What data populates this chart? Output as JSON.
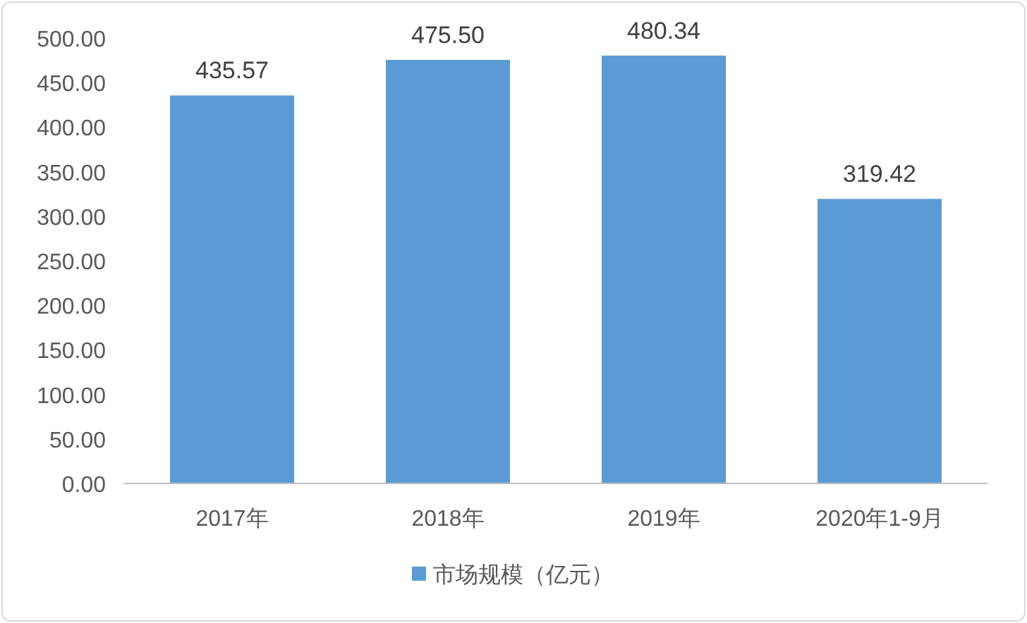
{
  "chart_data": {
    "type": "bar",
    "categories": [
      "2017年",
      "2018年",
      "2019年",
      "2020年1-9月"
    ],
    "series": [
      {
        "name": "市场规模（亿元）",
        "color": "#5b9bd5",
        "values": [
          435.57,
          475.5,
          480.34,
          319.42
        ],
        "value_labels": [
          "435.57",
          "475.50",
          "480.34",
          "319.42"
        ]
      }
    ],
    "ylim": [
      0,
      500
    ],
    "yticks": [
      {
        "value": 0,
        "label": "0.00"
      },
      {
        "value": 50,
        "label": "50.00"
      },
      {
        "value": 100,
        "label": "100.00"
      },
      {
        "value": 150,
        "label": "150.00"
      },
      {
        "value": 200,
        "label": "200.00"
      },
      {
        "value": 250,
        "label": "250.00"
      },
      {
        "value": 300,
        "label": "300.00"
      },
      {
        "value": 350,
        "label": "350.00"
      },
      {
        "value": 400,
        "label": "400.00"
      },
      {
        "value": 450,
        "label": "450.00"
      },
      {
        "value": 500,
        "label": "500.00"
      }
    ],
    "grid": false,
    "legend": "bottom"
  }
}
